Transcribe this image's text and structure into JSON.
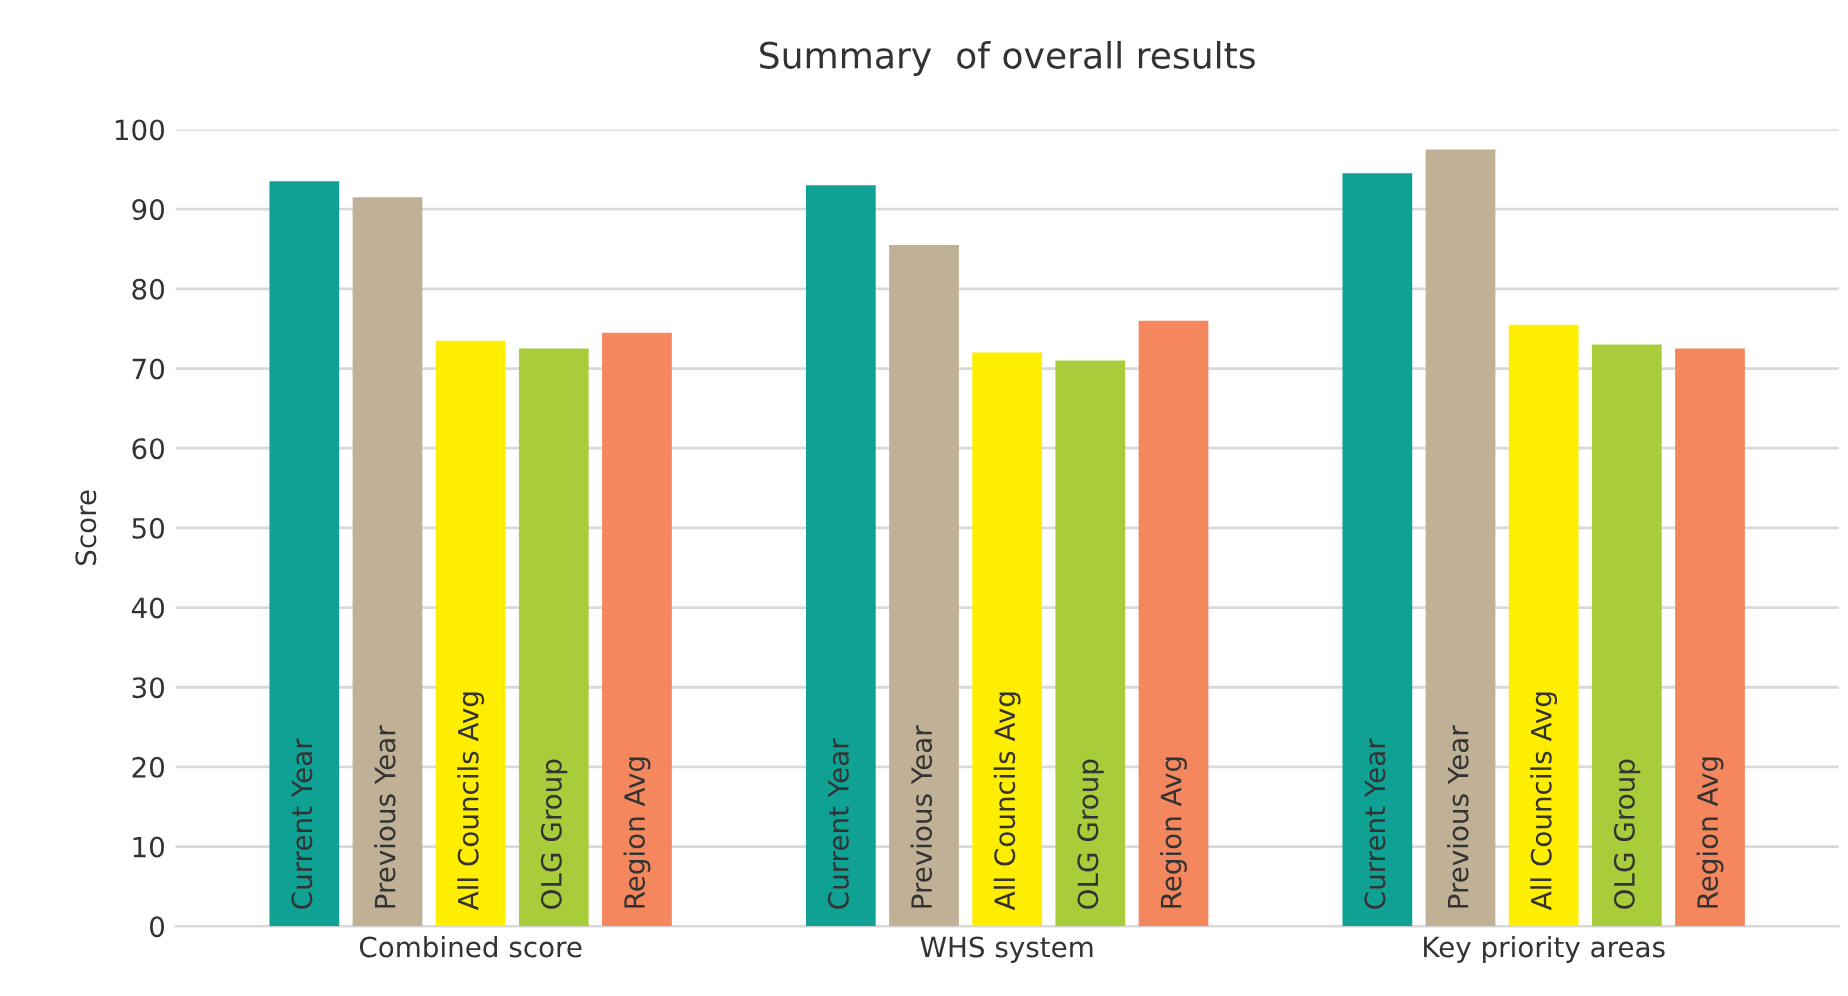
{
  "chart_data": {
    "type": "bar",
    "title": "Summary  of overall results",
    "ylabel": "Score",
    "categories": [
      "Combined score",
      "WHS system",
      "Key priority areas"
    ],
    "series": [
      {
        "name": "Current Year",
        "color": "#10a195",
        "values": [
          93.5,
          93,
          94.5
        ]
      },
      {
        "name": "Previous Year",
        "color": "#bfb096",
        "values": [
          91.5,
          85.5,
          97.5
        ]
      },
      {
        "name": "All Councils Avg",
        "color": "#ffee00",
        "values": [
          73.5,
          72,
          75.5
        ]
      },
      {
        "name": "OLG Group",
        "color": "#a9cc3a",
        "values": [
          72.5,
          71,
          73
        ]
      },
      {
        "name": "Region Avg",
        "color": "#f4875d",
        "values": [
          74.5,
          76,
          72.5
        ]
      }
    ],
    "ylim": [
      0,
      100
    ],
    "yticks": [
      0,
      10,
      20,
      30,
      40,
      50,
      60,
      70,
      80,
      90,
      100
    ],
    "grid": "y",
    "legend": false
  }
}
